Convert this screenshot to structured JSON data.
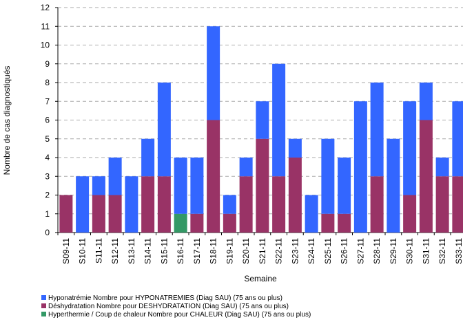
{
  "chart_data": {
    "type": "stacked-bar",
    "y_label": "Nombre de cas diagnostiqués",
    "x_label": "Semaine",
    "categories": [
      "S09-11",
      "S10-11",
      "S11-11",
      "S12-11",
      "S13-11",
      "S14-11",
      "S15-11",
      "S16-11",
      "S17-11",
      "S18-11",
      "S19-11",
      "S20-11",
      "S21-11",
      "S22-11",
      "S23-11",
      "S24-11",
      "S25-11",
      "S26-11",
      "S27-11",
      "S28-11",
      "S29-11",
      "S30-11",
      "S31-11",
      "S32-11",
      "S33-11"
    ],
    "series": [
      {
        "name": "Hyponatrémie Nombre pour HYPONATREMIES (Diag SAU) (75 ans ou plus)",
        "color": "#3366ff",
        "values": [
          0,
          3,
          1,
          2,
          3,
          2,
          5,
          3,
          3,
          5,
          1,
          1,
          2,
          6,
          1,
          2,
          4,
          3,
          7,
          5,
          5,
          5,
          2,
          1,
          4
        ]
      },
      {
        "name": "Déshydratation Nombre pour DESHYDRATATION (Diag SAU) (75 ans ou plus)",
        "color": "#993366",
        "values": [
          2,
          0,
          2,
          2,
          0,
          3,
          3,
          0,
          1,
          6,
          1,
          3,
          5,
          3,
          4,
          0,
          1,
          1,
          0,
          3,
          0,
          2,
          6,
          3,
          3
        ]
      },
      {
        "name": "Hyperthermie / Coup de chaleur Nombre pour CHALEUR (Diag SAU) (75 ans ou plus)",
        "color": "#339966",
        "values": [
          0,
          0,
          0,
          0,
          0,
          0,
          0,
          1,
          0,
          0,
          0,
          0,
          0,
          0,
          0,
          0,
          0,
          0,
          0,
          0,
          0,
          0,
          0,
          0,
          0
        ]
      }
    ],
    "ylim": [
      0,
      12
    ],
    "yticks": [
      0,
      1,
      2,
      3,
      4,
      5,
      6,
      7,
      8,
      9,
      10,
      11,
      12
    ],
    "grid": true
  }
}
